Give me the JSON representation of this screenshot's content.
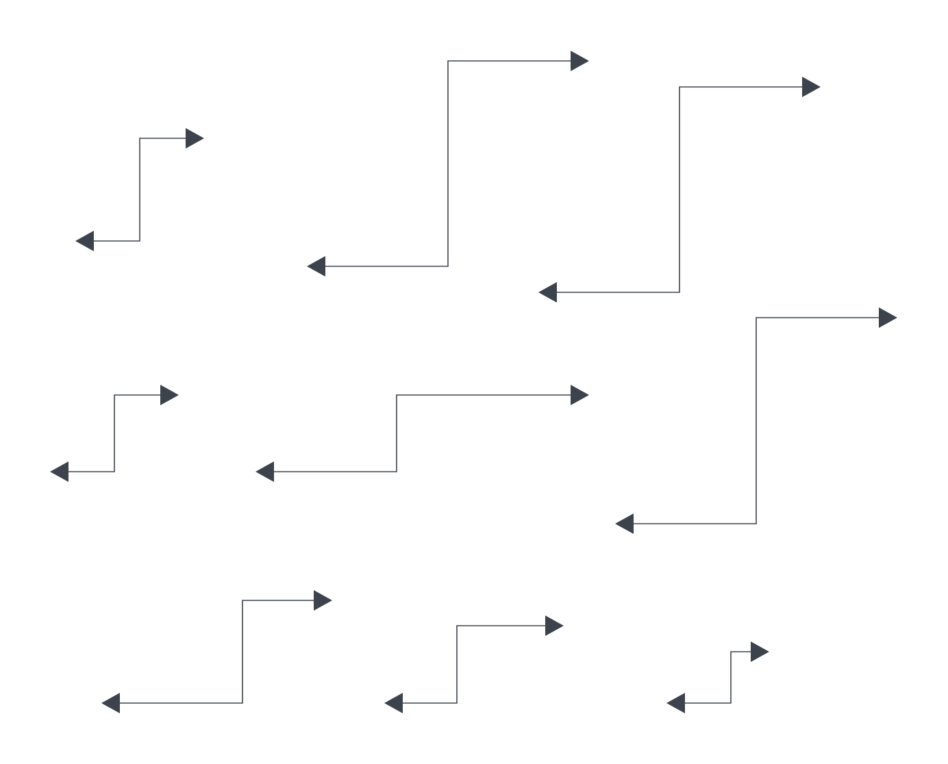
{
  "diagram": {
    "kind": "double-headed elbow connectors",
    "stroke_color": "#3d434d",
    "background": "#ffffff",
    "connector_count": 9,
    "connectors": [
      {
        "name": "connector-1",
        "start_head": "arrow-left",
        "end_head": "arrow-right",
        "route": "horizontal-vertical-horizontal"
      },
      {
        "name": "connector-2",
        "start_head": "arrow-left",
        "end_head": "arrow-right",
        "route": "horizontal-vertical-horizontal"
      },
      {
        "name": "connector-3",
        "start_head": "arrow-left",
        "end_head": "arrow-right",
        "route": "horizontal-vertical-horizontal"
      },
      {
        "name": "connector-4",
        "start_head": "arrow-left",
        "end_head": "arrow-right",
        "route": "horizontal-vertical-horizontal"
      },
      {
        "name": "connector-5",
        "start_head": "arrow-left",
        "end_head": "arrow-right",
        "route": "horizontal-vertical-horizontal"
      },
      {
        "name": "connector-6",
        "start_head": "arrow-left",
        "end_head": "arrow-right",
        "route": "horizontal-vertical-horizontal"
      },
      {
        "name": "connector-7",
        "start_head": "arrow-left",
        "end_head": "arrow-right",
        "route": "horizontal-vertical-horizontal"
      },
      {
        "name": "connector-8",
        "start_head": "arrow-left",
        "end_head": "arrow-right",
        "route": "horizontal-vertical-horizontal"
      },
      {
        "name": "connector-9",
        "start_head": "arrow-left",
        "end_head": "arrow-right",
        "route": "horizontal-vertical-horizontal"
      }
    ]
  }
}
